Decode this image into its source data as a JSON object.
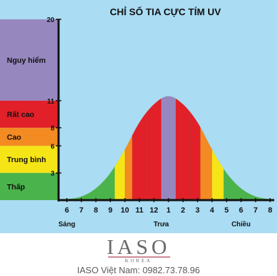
{
  "chart_data": {
    "type": "area",
    "title": "CHỈ SỐ TIA CỰC TÍM UV",
    "xlabel": "",
    "ylabel": "",
    "x_ticks": [
      "6",
      "7",
      "8",
      "9",
      "10",
      "11",
      "12",
      "1",
      "2",
      "3",
      "4",
      "5",
      "6",
      "7",
      "8"
    ],
    "x_sublabels": [
      {
        "tick_index": 0,
        "text": "Sáng"
      },
      {
        "tick_index": 6.5,
        "text": "Trưa"
      },
      {
        "tick_index": 12,
        "text": "Chiều"
      }
    ],
    "y_ticks": [
      3,
      6,
      8,
      11,
      20
    ],
    "ylim": [
      0,
      20
    ],
    "levels": [
      {
        "name": "Nguy hiểm",
        "from": 11,
        "to": 20,
        "color": "#9787bf"
      },
      {
        "name": "Rất cao",
        "from": 8,
        "to": 11,
        "color": "#e2202a"
      },
      {
        "name": "Cao",
        "from": 6,
        "to": 8,
        "color": "#f38a22"
      },
      {
        "name": "Trung bình",
        "from": 3,
        "to": 6,
        "color": "#f6e516"
      },
      {
        "name": "Thấp",
        "from": 0,
        "to": 3,
        "color": "#4bb34c"
      }
    ],
    "curve": {
      "x": [
        6,
        7,
        8,
        9,
        10,
        11,
        12,
        13,
        14,
        15,
        16,
        17,
        18,
        19,
        20
      ],
      "y": [
        0.1,
        0.4,
        1.3,
        3.0,
        5.6,
        8.6,
        10.6,
        11.5,
        10.6,
        8.6,
        5.6,
        3.0,
        1.3,
        0.4,
        0.1
      ]
    },
    "bands": [
      {
        "x_from": 8.7,
        "x_to": 9.3,
        "color": "#4bb34c"
      },
      {
        "x_from": 9.3,
        "x_to": 10.0,
        "color": "#f6e516"
      },
      {
        "x_from": 10.0,
        "x_to": 10.5,
        "color": "#f38a22"
      },
      {
        "x_from": 10.5,
        "x_to": 11.5,
        "color": "#e2202a"
      },
      {
        "x_from": 11.5,
        "x_to": 12.5,
        "color": "#e2202a"
      },
      {
        "x_from": 12.5,
        "x_to": 13.5,
        "color": "#9787bf"
      },
      {
        "x_from": 13.5,
        "x_to": 14.5,
        "color": "#e2202a"
      },
      {
        "x_from": 14.5,
        "x_to": 15.2,
        "color": "#e2202a"
      },
      {
        "x_from": 15.2,
        "x_to": 16.0,
        "color": "#f38a22"
      },
      {
        "x_from": 16.0,
        "x_to": 16.8,
        "color": "#f6e516"
      },
      {
        "x_from": 16.8,
        "x_to": 17.5,
        "color": "#4bb34c"
      }
    ],
    "colors": {
      "background": "#aadcf3",
      "curve_base": "#4bb34c",
      "axis": "#111111"
    }
  },
  "footer": {
    "logo": "IASO",
    "logo_sub": "KOREA",
    "contact": "IASO Việt Nam: 0982.73.78.96"
  }
}
